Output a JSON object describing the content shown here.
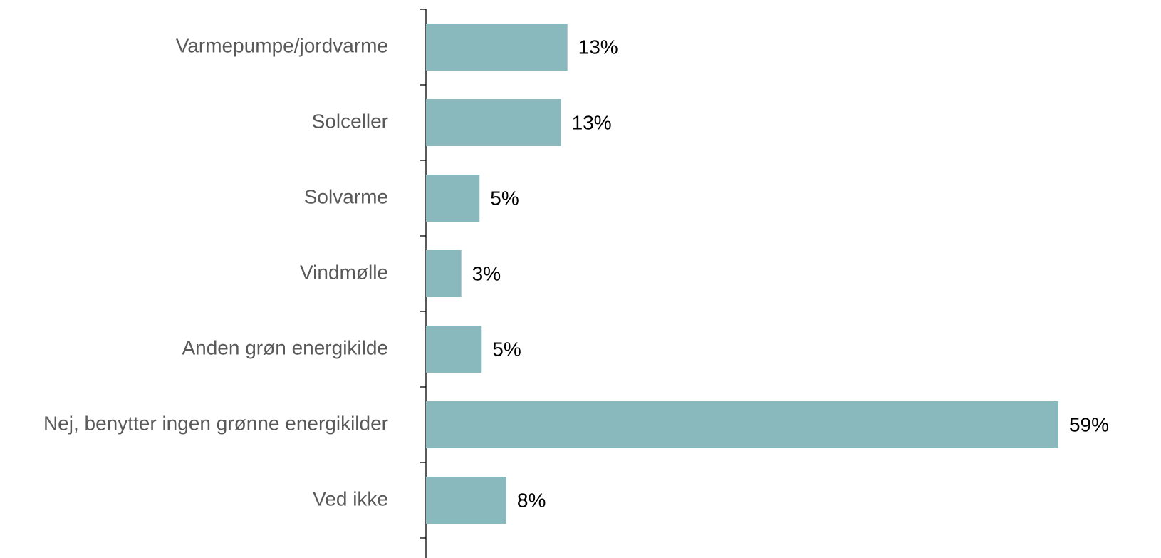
{
  "chart_data": {
    "type": "barh",
    "categories": [
      "Varmepumpe/jordvarme",
      "Solceller",
      "Solvarme",
      "Vindmølle",
      "Anden grøn energikilde",
      "Nej, benytter ingen grønne energikilder",
      "Ved ikke"
    ],
    "values": [
      13.2,
      12.6,
      5,
      3.3,
      5.2,
      59,
      7.5
    ],
    "value_labels": [
      "13%",
      "13%",
      "5%",
      "3%",
      "5%",
      "59%",
      "8%"
    ],
    "color": "#89b9bd",
    "xlim": [
      0,
      60
    ]
  }
}
